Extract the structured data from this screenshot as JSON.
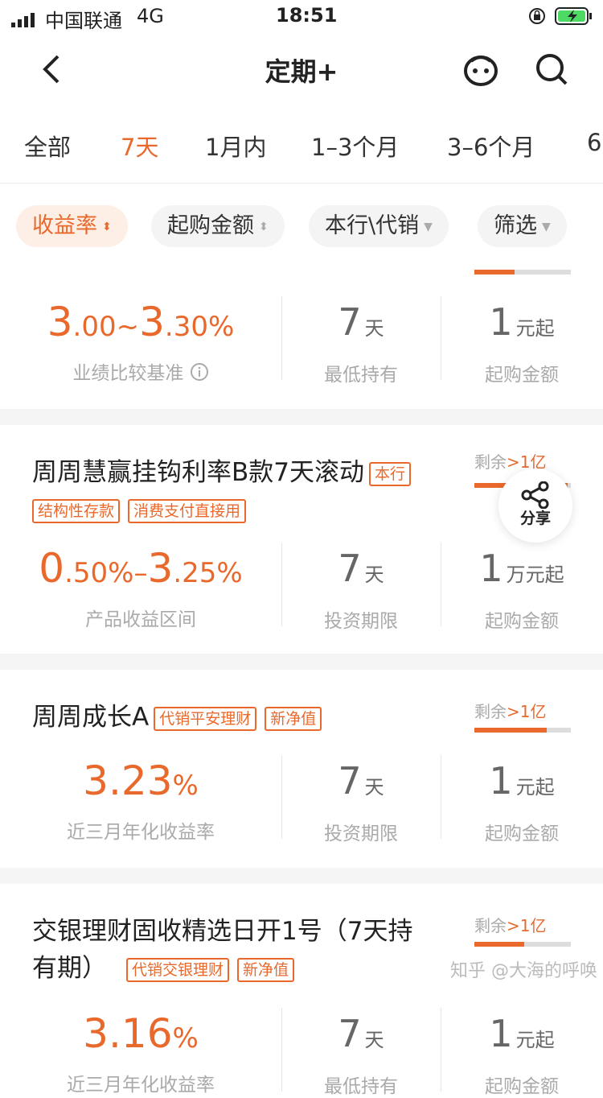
{
  "status_bar": {
    "carrier": "中国联通",
    "network": "4G",
    "time": "18:51"
  },
  "nav": {
    "title": "定期+",
    "back_icon": "chevron-left-icon",
    "service_icon": "robot-face-icon",
    "search_icon": "search-icon"
  },
  "tabs": [
    {
      "label": "全部"
    },
    {
      "label": "7天",
      "active": true
    },
    {
      "label": "1月内"
    },
    {
      "label": "1–3个月"
    },
    {
      "label": "3–6个月"
    },
    {
      "label": "6"
    }
  ],
  "filters": [
    {
      "label": "收益率",
      "active": true
    },
    {
      "label": "起购金额"
    },
    {
      "label": "本行\\代销"
    },
    {
      "label": "筛选"
    }
  ],
  "accent": "#e8692b",
  "products": [
    {
      "title": "",
      "tags": [],
      "remaining": "",
      "progress": 0.42,
      "rate_main": "3",
      "rate_a": ".00~",
      "rate_b": "3",
      ".c": "",
      "rate_c": ".30%",
      "rate_label": "业绩比较基准",
      "term": "7",
      "term_unit": "天",
      "term_label": "最低持有",
      "min": "1",
      "min_unit": "元起",
      "min_label": "起购金额"
    },
    {
      "title": "周周慧赢挂钩利率B款7天滚动",
      "tags": [
        "本行",
        "结构性存款",
        "消费支付直接用"
      ],
      "remaining_label": "剩余",
      "remaining": ">1亿",
      "progress": 0.97,
      "rate_main": "0",
      "rate_a": ".50%–",
      "rate_b": "3",
      "rate_c": ".25%",
      "rate_label": "产品收益区间",
      "term": "7",
      "term_unit": "天",
      "term_label": "投资期限",
      "min": "1",
      "min_unit": "万元起",
      "min_label": "起购金额"
    },
    {
      "title": "周周成长A",
      "tags": [
        "代销平安理财",
        "新净值"
      ],
      "remaining_label": "剩余",
      "remaining": ">1亿",
      "progress": 0.75,
      "rate_main": "3.23",
      "rate_c": "%",
      "rate_label": "近三月年化收益率",
      "term": "7",
      "term_unit": "天",
      "term_label": "投资期限",
      "min": "1",
      "min_unit": "元起",
      "min_label": "起购金额"
    },
    {
      "title": "交银理财固收精选日开1号（7天持",
      "title2": "有期）",
      "tags": [
        "代销交银理财",
        "新净值"
      ],
      "remaining_label": "剩余",
      "remaining": ">1亿",
      "progress": 0.52,
      "rate_main": "3.16",
      "rate_c": "%",
      "rate_label": "近三月年化收益率",
      "term": "7",
      "term_unit": "天",
      "term_label": "最低持有",
      "min": "1",
      "min_unit": "元起",
      "min_label": "起购金额"
    }
  ],
  "share": {
    "label": "分享",
    "icon": "share-icon"
  },
  "watermark": "知乎 @大海的呼唤"
}
